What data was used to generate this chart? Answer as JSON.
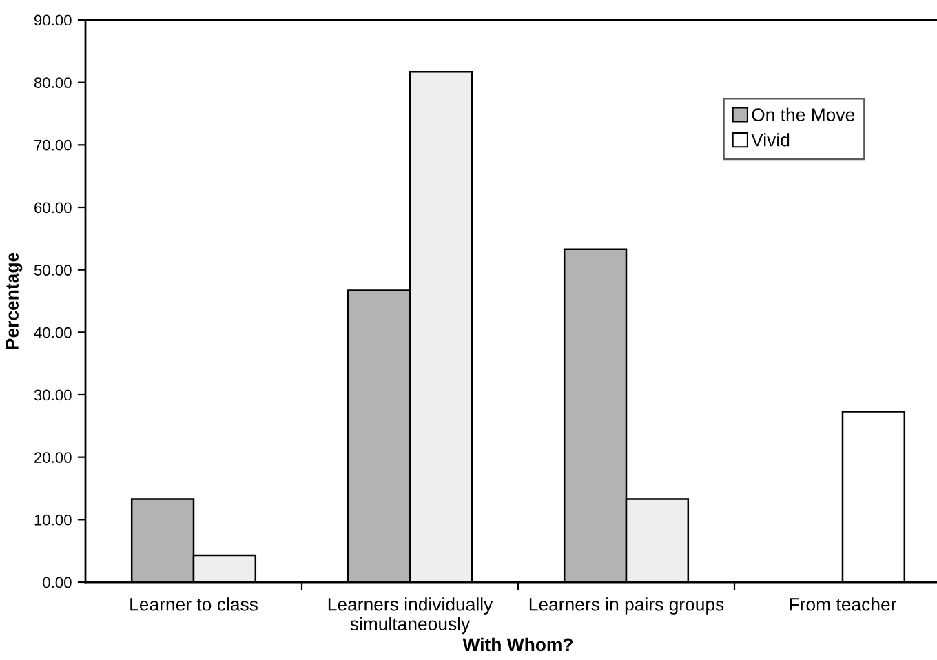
{
  "chart_data": {
    "type": "bar",
    "xlabel": "With Whom?",
    "ylabel": "Percentage",
    "categories": [
      "Learner to class",
      "Learners individually\nsimultaneously",
      "Learners in pairs groups",
      "From teacher"
    ],
    "series": [
      {
        "name": "On the Move",
        "color": "#b3b3b3",
        "values": [
          13.3,
          46.7,
          53.3,
          null
        ]
      },
      {
        "name": "Vivid",
        "color": "#ffffff",
        "colors": [
          "#eeeeee",
          "#eeeeee",
          "#eeeeee",
          "#ffffff"
        ],
        "values": [
          4.3,
          81.7,
          13.3,
          27.3
        ]
      }
    ],
    "ylim": [
      0,
      90
    ],
    "yticks": [
      {
        "value": 0,
        "label": "0.00"
      },
      {
        "value": 10,
        "label": "10.00"
      },
      {
        "value": 20,
        "label": "20.00"
      },
      {
        "value": 30,
        "label": "30.00"
      },
      {
        "value": 40,
        "label": "40.00"
      },
      {
        "value": 50,
        "label": "50.00"
      },
      {
        "value": 60,
        "label": "60.00"
      },
      {
        "value": 70,
        "label": "70.00"
      },
      {
        "value": 80,
        "label": "80.00"
      },
      {
        "value": 90,
        "label": "90.00"
      }
    ],
    "legend": "top right"
  }
}
